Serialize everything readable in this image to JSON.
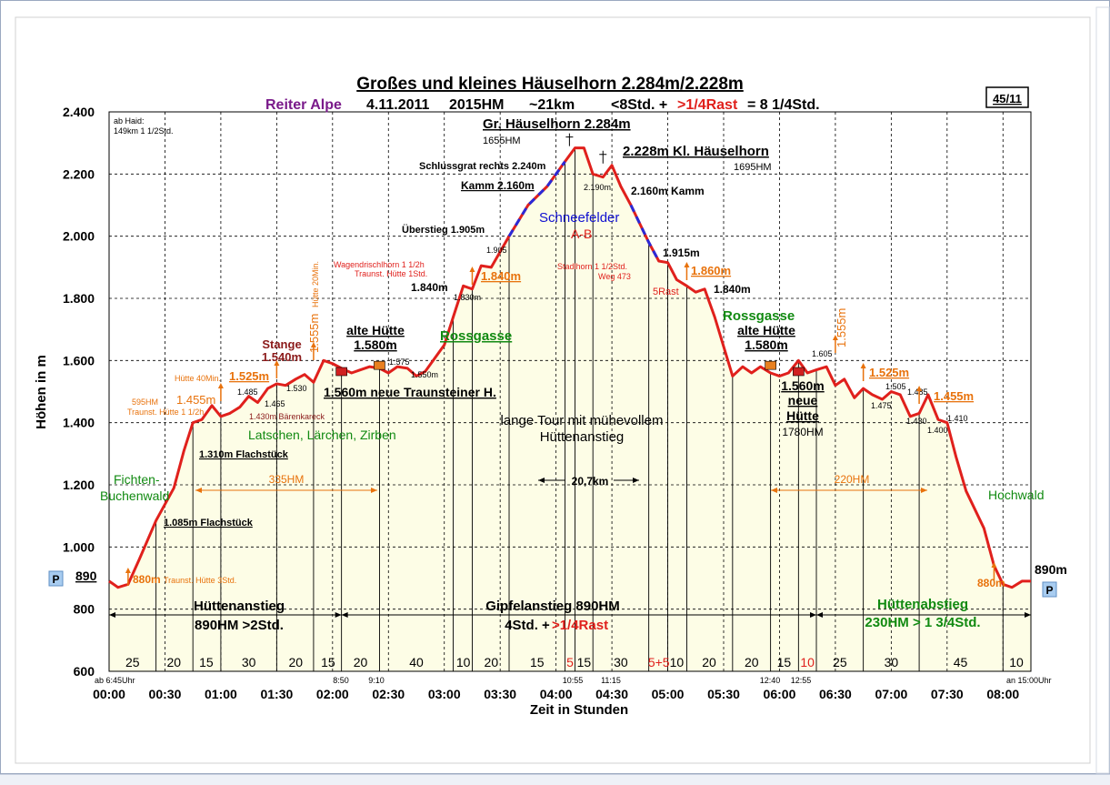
{
  "title": "Großes und kleines Häuselhorn 2.284m/2.228m",
  "subtitle": {
    "place": "Reiter Alpe",
    "date": "4.11.2011",
    "hm": "2015HM",
    "distance": "~21km",
    "time": "<8Std. +",
    "rest": ">1/4Rast",
    "total": "=   8 1/4Std."
  },
  "badge": "45/11",
  "colors": {
    "line": "#e0201c",
    "fill": "#fdfde6",
    "grid": "#000000",
    "orange": "#e8720c",
    "green": "#118a11",
    "blue": "#1010d0",
    "purple": "#7a1a8a",
    "darkred": "#8b1a1a",
    "red": "#e0201c",
    "dash_blue": "#2a2ad8"
  },
  "chart_data": {
    "type": "area",
    "xlabel": "Zeit in Stunden",
    "ylabel": "Höhen in m",
    "xlim": [
      0,
      8.25
    ],
    "ylim": [
      600,
      2400
    ],
    "y_ticks": [
      "600",
      "800",
      "1.000",
      "1.200",
      "1.400",
      "1.600",
      "1.800",
      "2.000",
      "2.200",
      "2.400"
    ],
    "x_ticks": [
      "00:00",
      "00:30",
      "01:00",
      "01:30",
      "02:00",
      "02:30",
      "03:00",
      "03:30",
      "04:00",
      "04:30",
      "05:00",
      "05:30",
      "06:00",
      "06:30",
      "07:00",
      "07:30",
      "08:00"
    ],
    "grid": true,
    "x_hours": [
      0,
      0.08,
      0.17,
      0.27,
      0.42,
      0.58,
      0.67,
      0.75,
      0.83,
      0.92,
      1,
      1.08,
      1.17,
      1.25,
      1.33,
      1.42,
      1.5,
      1.58,
      1.67,
      1.75,
      1.83,
      1.92,
      2,
      2.08,
      2.17,
      2.25,
      2.33,
      2.42,
      2.5,
      2.58,
      2.67,
      2.75,
      2.83,
      3,
      3.08,
      3.17,
      3.25,
      3.33,
      3.42,
      3.58,
      3.75,
      3.92,
      4.08,
      4.17,
      4.25,
      4.33,
      4.42,
      4.5,
      4.58,
      4.67,
      4.83,
      4.92,
      5,
      5.08,
      5.17,
      5.25,
      5.33,
      5.42,
      5.58,
      5.67,
      5.75,
      5.83,
      5.92,
      6,
      6.08,
      6.17,
      6.25,
      6.33,
      6.42,
      6.5,
      6.58,
      6.67,
      6.75,
      6.83,
      6.92,
      7,
      7.08,
      7.17,
      7.25,
      7.33,
      7.42,
      7.5,
      7.58,
      7.67,
      7.83,
      7.92,
      8,
      8.08,
      8.17,
      8.25
    ],
    "elevation": [
      890,
      870,
      880,
      960,
      1085,
      1190,
      1310,
      1400,
      1410,
      1455,
      1420,
      1430,
      1450,
      1485,
      1465,
      1510,
      1525,
      1520,
      1540,
      1555,
      1530,
      1600,
      1590,
      1575,
      1560,
      1570,
      1580,
      1575,
      1560,
      1580,
      1575,
      1550,
      1565,
      1650,
      1740,
      1840,
      1830,
      1905,
      1900,
      2000,
      2100,
      2160,
      2240,
      2284,
      2284,
      2200,
      2190,
      2228,
      2160,
      2100,
      1980,
      1920,
      1915,
      1860,
      1840,
      1820,
      1830,
      1740,
      1550,
      1580,
      1560,
      1580,
      1560,
      1550,
      1560,
      1600,
      1560,
      1570,
      1580,
      1520,
      1540,
      1480,
      1510,
      1490,
      1475,
      1500,
      1490,
      1420,
      1430,
      1490,
      1410,
      1400,
      1290,
      1180,
      1060,
      940,
      880,
      870,
      890,
      890
    ],
    "segment_minutes": [
      "25",
      "20",
      "15",
      "30",
      "20",
      "15",
      "20",
      "40",
      "10",
      "20",
      "15",
      "5",
      "15",
      "30",
      "5+5",
      "10",
      "20",
      "20",
      "15",
      "10",
      "25",
      "30",
      "45",
      "10"
    ],
    "phases": [
      {
        "label": "Hüttenanstieg",
        "detail": "890HM  >2Std."
      },
      {
        "label": "Gipfelanstieg   890HM",
        "detail": "4Std. +",
        "detail_red": ">1/4Rast"
      },
      {
        "label": "Hüttenabstieg",
        "detail": "230HM > 1 3/4Std."
      }
    ],
    "range_labels": [
      "335HM",
      "220HM",
      "20,7km"
    ],
    "annotations": {
      "start_elev": "890",
      "end_elev": "890m",
      "start_time": "ab 6:45Uhr",
      "end_time": "an 15:00Uhr",
      "parking": "P",
      "haid": "ab Haid:",
      "haid2": "149km 1 1/2Std.",
      "gr_peak": "Gr. Häuselhorn  2.284m",
      "gr_hm": "1655HM",
      "kl_peak": "2.228m Kl. Häuselhorn",
      "kl_hm": "1695HM",
      "schlussgrat": "Schlussgrat rechts 2.240m",
      "kamm_left": "Kamm 2.160m",
      "kamm_right": "2.160m Kamm",
      "p2190": "2.190m",
      "ueberstieg": "Überstieg 1.905m",
      "p1905": "1.905",
      "schneefelder": "Schneefelder",
      "ab": "A-B",
      "p1915": "1.915m",
      "p1840a": "1.840m",
      "p1830": "1.830m",
      "p1840o": "1.840m",
      "wagend": "Wagendrischlhorn 1 1/2h",
      "wagend2": "Traunst. Hütte 1Std.",
      "stadl": "Stadlhorn 1 1/2Std.",
      "stadl2": "Weg 473",
      "p1860": "1.860m",
      "rast5": "5Rast",
      "p1840r": "1.840m",
      "rossgasse_l": "Rossgasse",
      "rossgasse_r": "Rossgasse",
      "alte_huette_l": "alte Hütte",
      "alte_huette_l2": "1.580m",
      "alte_huette_r": "alte Hütte",
      "alte_huette_r2": "1.580m",
      "neue_h": "1.560m neue Traunsteiner H.",
      "neue_r1": "1.560m",
      "neue_r2": "neue",
      "neue_r3": "Hütte",
      "neue_r4": "1780HM",
      "stange": "Stange",
      "stange2": "1.540m",
      "p1555": "1.555m",
      "huette20": "Hütte 20Min.",
      "p1575": "1.575",
      "p1550": "1.550m",
      "p1530": "1.530",
      "huette40": "Hütte 40Min.",
      "p1525": "1.525m",
      "p1485": "1.485",
      "p1465": "1.465",
      "baerenkareck": "1.430m Bärenkareck",
      "p595": "595HM",
      "traunst112": "Traunst. Hütte 1 1/2h",
      "p1455": "1.455m",
      "latschen": "Latschen, Lärchen, Zirben",
      "flach1310": "1.310m Flachstück",
      "flach1085": "1.085m Flachstück",
      "fichten": "Fichten-",
      "buchenwald": "Buchenwald",
      "p880": "880m",
      "traunst3": "Traunst. Hütte 3Std.",
      "lange1": "lange Tour mit mühevollem",
      "lange2": "Hüttenanstieg",
      "p1605": "1.605",
      "p1555r": "1.555m",
      "p1525r": "1.525m",
      "p1475": "1.475",
      "p1505": "1.505",
      "p1485r": "1.485",
      "p1430": "1.430",
      "p1455r": "1.455m",
      "p1410": "1.410",
      "p1400": "1.400",
      "p880r": "880m",
      "hochwald": "Hochwald",
      "t850": "8:50",
      "t910": "9:10",
      "t1055": "10:55",
      "t1115": "11:15",
      "t1240": "12:40",
      "t1255": "12:55"
    }
  }
}
